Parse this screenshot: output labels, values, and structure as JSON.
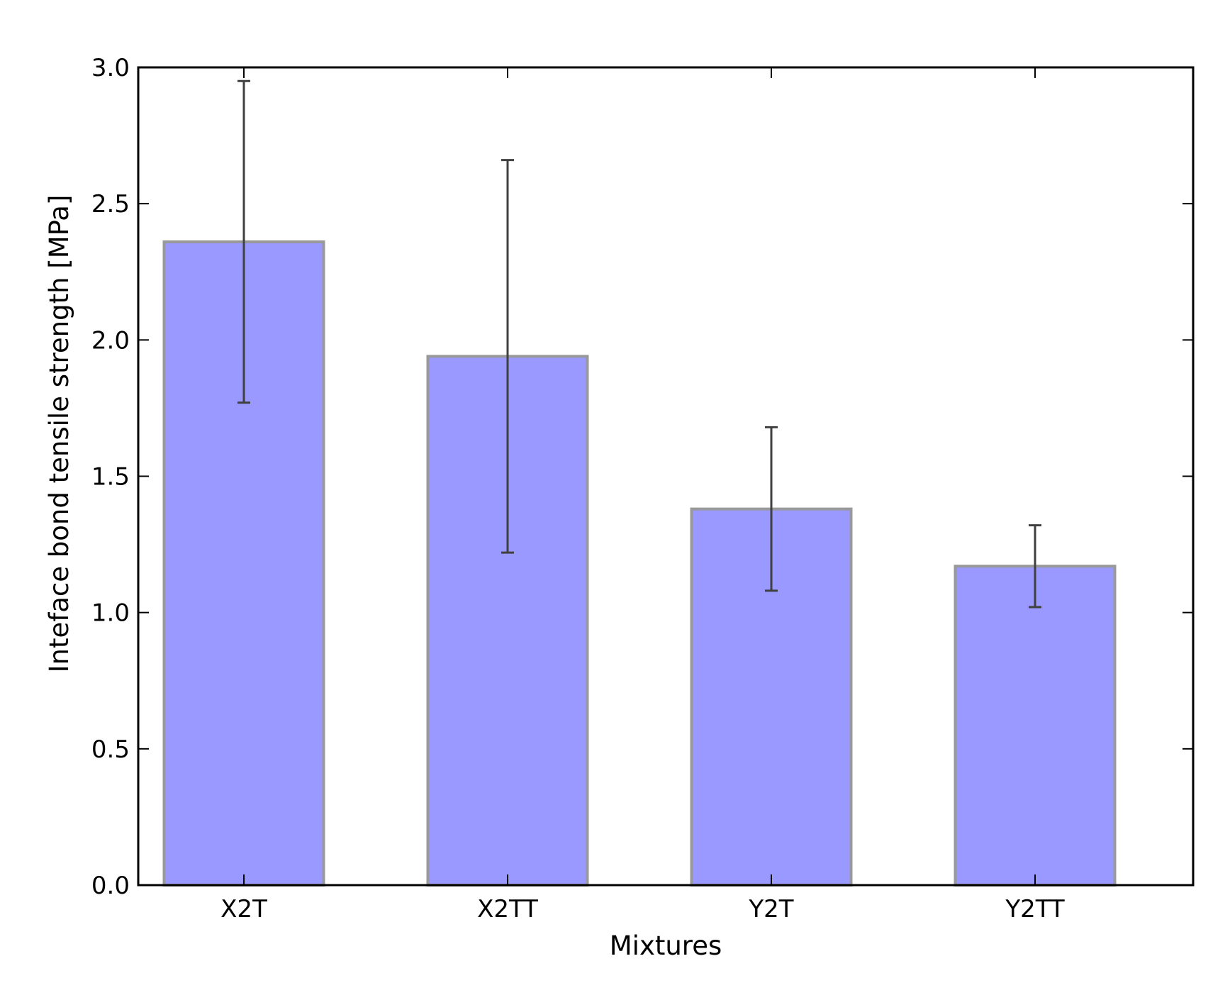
{
  "chart_data": {
    "type": "bar",
    "title": "",
    "xlabel": "Mixtures",
    "ylabel": "Inteface bond tensile strength [MPa]",
    "categories": [
      "X2T",
      "X2TT",
      "Y2T",
      "Y2TT"
    ],
    "values": [
      2.36,
      1.94,
      1.38,
      1.17
    ],
    "error_low": [
      1.77,
      1.22,
      1.08,
      1.02
    ],
    "error_high": [
      2.95,
      2.66,
      1.68,
      1.32
    ],
    "ylim": [
      0.0,
      3.0
    ],
    "yticks": [
      0.0,
      0.5,
      1.0,
      1.5,
      2.0,
      2.5,
      3.0
    ],
    "ytick_labels": [
      "0.0",
      "0.5",
      "1.0",
      "1.5",
      "2.0",
      "2.5",
      "3.0"
    ],
    "grid": false,
    "legend": "none",
    "bar_color": "#9999ff",
    "bar_edge_color": "#999999",
    "error_bar_color": "#404040"
  }
}
